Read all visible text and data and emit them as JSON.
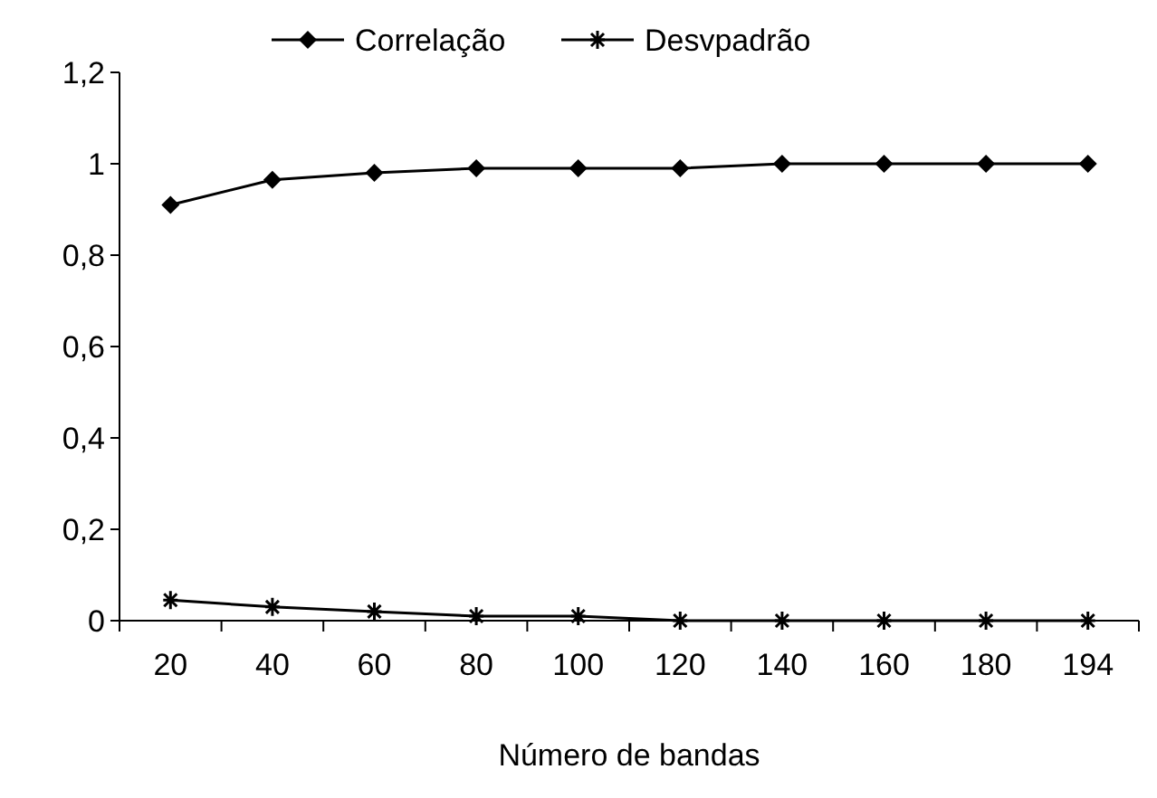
{
  "chart_data": {
    "type": "line",
    "xlabel": "Número de bandas",
    "categories": [
      "20",
      "40",
      "60",
      "80",
      "100",
      "120",
      "140",
      "160",
      "180",
      "194"
    ],
    "series": [
      {
        "name": "Correlação",
        "color": "#000000",
        "marker": "diamond",
        "values": [
          0.91,
          0.965,
          0.98,
          0.99,
          0.99,
          0.99,
          1,
          1,
          1,
          1
        ]
      },
      {
        "name": "Desvpadrão",
        "color": "#000000",
        "marker": "cross",
        "values": [
          0.045,
          0.03,
          0.02,
          0.01,
          0.01,
          0,
          0,
          0,
          0,
          0
        ]
      }
    ],
    "ylim": [
      0,
      1.2
    ],
    "yticks": [
      {
        "value": 0,
        "label": "0"
      },
      {
        "value": 0.2,
        "label": "0,2"
      },
      {
        "value": 0.4,
        "label": "0,4"
      },
      {
        "value": 0.6,
        "label": "0,6"
      },
      {
        "value": 0.8,
        "label": "0,8"
      },
      {
        "value": 1,
        "label": "1"
      },
      {
        "value": 1.2,
        "label": "1,2"
      }
    ],
    "grid": false,
    "legend": "top",
    "line_style": "solid"
  }
}
